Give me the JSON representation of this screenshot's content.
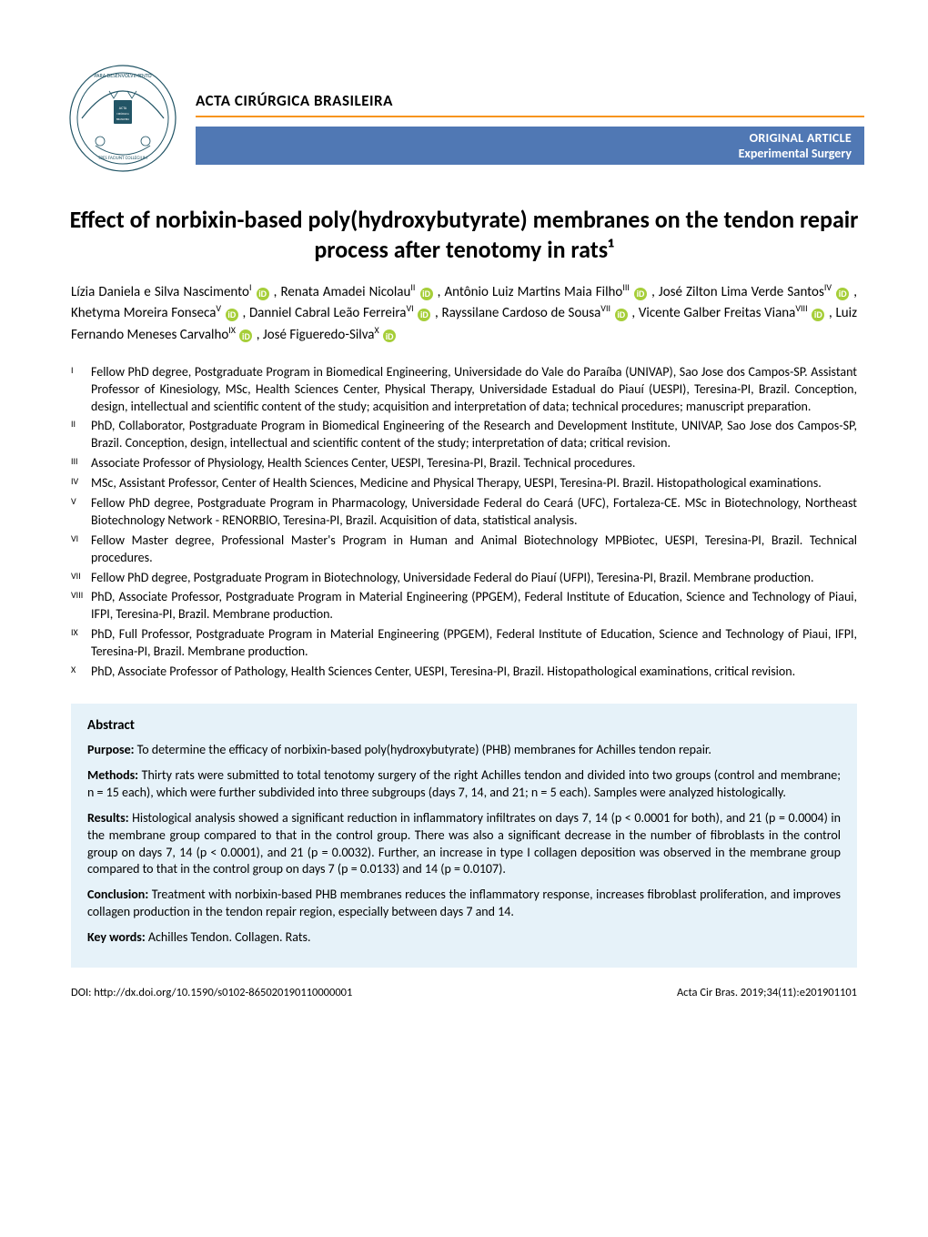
{
  "journal_name": "ACTA CIRÚRGICA BRASILEIRA",
  "category": {
    "line1": "ORIGINAL ARTICLE",
    "line2": "Experimental Surgery"
  },
  "title": "Effect of norbixin-based poly(hydroxybutyrate) membranes on the tendon repair process after tenotomy in rats¹",
  "colors": {
    "divider": "#f7941e",
    "banner_bg": "#5078b4",
    "abstract_bg": "#e6f2f9",
    "orcid_bg": "#a6ce39",
    "text": "#000000"
  },
  "authors": [
    {
      "name": "Lízia Daniela e Silva Nascimento",
      "sup": "I",
      "orcid": true,
      "sep": " , "
    },
    {
      "name": "Renata Amadei Nicolau",
      "sup": "II",
      "orcid": true,
      "sep": " , "
    },
    {
      "name": "Antônio Luiz Martins Maia Filho",
      "sup": "III",
      "orcid": true,
      "sep": " , "
    },
    {
      "name": "José Zilton Lima Verde Santos",
      "sup": "IV",
      "orcid": true,
      "sep": " , "
    },
    {
      "name": "Khetyma Moreira Fonseca",
      "sup": "V",
      "orcid": true,
      "sep": " , "
    },
    {
      "name": "Danniel Cabral Leão Ferreira",
      "sup": "VI",
      "orcid": true,
      "sep": " , "
    },
    {
      "name": "Rayssilane Cardoso de Sousa",
      "sup": "VII",
      "orcid": true,
      "sep": " , "
    },
    {
      "name": "Vicente Galber Freitas Viana",
      "sup": "VIII",
      "orcid": true,
      "sep": " , "
    },
    {
      "name": "Luiz Fernando Meneses Carvalho",
      "sup": "IX",
      "orcid": true,
      "sep": " , "
    },
    {
      "name": "José Figueredo-Silva",
      "sup": "X",
      "orcid": true,
      "sep": ""
    }
  ],
  "affiliations": [
    {
      "num": "I",
      "text": "Fellow PhD degree, Postgraduate Program in Biomedical Engineering, Universidade do Vale do Paraíba (UNIVAP), Sao Jose dos Campos-SP. Assistant Professor of Kinesiology, MSc, Health Sciences Center, Physical Therapy, Universidade Estadual do Piauí (UESPI), Teresina-PI, Brazil. Conception, design, intellectual and scientific content of the study; acquisition and interpretation of data; technical procedures; manuscript preparation."
    },
    {
      "num": "II",
      "text": "PhD, Collaborator, Postgraduate Program in Biomedical Engineering of the Research and Development Institute, UNIVAP, Sao Jose dos Campos-SP, Brazil. Conception, design, intellectual and scientific content of the study; interpretation of data; critical revision."
    },
    {
      "num": "III",
      "text": "Associate Professor of Physiology, Health Sciences Center, UESPI, Teresina-PI, Brazil. Technical procedures."
    },
    {
      "num": "IV",
      "text": "MSc, Assistant Professor, Center of Health Sciences, Medicine and Physical Therapy, UESPI, Teresina-PI. Brazil. Histopathological examinations."
    },
    {
      "num": "V",
      "text": "Fellow PhD degree, Postgraduate Program in Pharmacology, Universidade Federal do Ceará (UFC), Fortaleza-CE. MSc in Biotechnology, Northeast Biotechnology Network - RENORBIO, Teresina-PI, Brazil. Acquisition of data, statistical analysis."
    },
    {
      "num": "VI",
      "text": "Fellow Master degree, Professional Master's Program in Human and Animal Biotechnology MPBiotec, UESPI, Teresina-PI, Brazil. Technical procedures."
    },
    {
      "num": "VII",
      "text": "Fellow PhD degree, Postgraduate Program in Biotechnology, Universidade Federal do Piauí (UFPI), Teresina-PI, Brazil. Membrane production."
    },
    {
      "num": "VIII",
      "text": "PhD, Associate Professor, Postgraduate Program in Material Engineering (PPGEM), Federal Institute of Education, Science and Technology of Piaui, IFPI, Teresina-PI, Brazil. Membrane production."
    },
    {
      "num": "IX",
      "text": "PhD, Full Professor, Postgraduate Program in Material Engineering (PPGEM), Federal Institute of Education, Science and Technology of Piaui, IFPI, Teresina-PI, Brazil. Membrane production."
    },
    {
      "num": "X",
      "text": "PhD, Associate Professor of Pathology, Health Sciences Center, UESPI, Teresina-PI, Brazil. Histopathological examinations, critical revision."
    }
  ],
  "abstract": {
    "heading": "Abstract",
    "sections": [
      {
        "label": "Purpose:",
        "text": " To determine the efficacy of norbixin-based poly(hydroxybutyrate) (PHB) membranes for Achilles tendon repair."
      },
      {
        "label": "Methods:",
        "text": " Thirty rats were submitted to total tenotomy surgery of the right Achilles tendon and divided into two groups (control and membrane; n = 15 each), which were further subdivided into three subgroups (days 7, 14, and 21; n = 5 each). Samples were analyzed histologically."
      },
      {
        "label": "Results:",
        "text": " Histological analysis showed a significant reduction in inflammatory infiltrates on days 7, 14 (p < 0.0001 for both), and 21 (p = 0.0004) in the membrane group compared to that in the control group. There was also a significant decrease in the number of fibroblasts in the control group on days 7, 14 (p < 0.0001), and 21 (p = 0.0032). Further, an increase in type I collagen deposition was observed in the membrane group compared to that in the control group on days 7 (p = 0.0133) and 14 (p = 0.0107)."
      },
      {
        "label": "Conclusion:",
        "text": " Treatment with norbixin-based PHB membranes reduces the inflammatory response, increases fibroblast proliferation, and improves collagen production in the tendon repair region, especially between days 7 and 14."
      },
      {
        "label": "Key words:",
        "text": " Achilles Tendon. Collagen. Rats."
      }
    ]
  },
  "footer": {
    "doi": "DOI: http://dx.doi.org/10.1590/s0102-865020190110000001",
    "citation": "Acta Cir Bras. 2019;34(11):e201901101"
  }
}
